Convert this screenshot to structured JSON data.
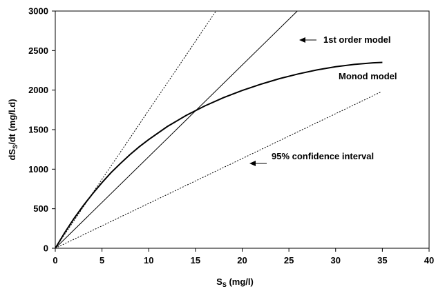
{
  "chart_data": {
    "type": "line",
    "title": "",
    "xlabel": {
      "main": "S",
      "sub": "S",
      "rest": " (mg/l)"
    },
    "ylabel": {
      "pre": "dS",
      "sub": "S",
      "rest": "/dt (mg/l.d)"
    },
    "xlim": [
      0,
      40
    ],
    "ylim": [
      0,
      3000
    ],
    "xticks": [
      0,
      5,
      10,
      15,
      20,
      25,
      30,
      35,
      40
    ],
    "yticks": [
      0,
      500,
      1000,
      1500,
      2000,
      2500,
      3000
    ],
    "grid": false,
    "legend": "none",
    "series": [
      {
        "name": "Monod model",
        "style": "solid-thick",
        "x": [
          0,
          1,
          2,
          3,
          4,
          5,
          6,
          7,
          8,
          9,
          10,
          12,
          14,
          16,
          18,
          20,
          22,
          24,
          26,
          28,
          30,
          32,
          34,
          35
        ],
        "y": [
          0,
          195,
          375,
          540,
          690,
          830,
          960,
          1075,
          1185,
          1285,
          1375,
          1540,
          1680,
          1800,
          1905,
          1995,
          2075,
          2145,
          2205,
          2255,
          2295,
          2325,
          2345,
          2350
        ]
      },
      {
        "name": "1st order model",
        "style": "solid-thin",
        "x": [
          0,
          25.9
        ],
        "y": [
          0,
          3000
        ]
      },
      {
        "name": "95% confidence interval upper",
        "style": "dotted",
        "x": [
          0,
          17.2
        ],
        "y": [
          0,
          3000
        ]
      },
      {
        "name": "95% confidence interval lower",
        "style": "dotted",
        "x": [
          0,
          34.9
        ],
        "y": [
          0,
          1980
        ]
      }
    ],
    "annotations": [
      {
        "text": "1st order model",
        "arrow": true,
        "target": "1st order model"
      },
      {
        "text": "Monod model",
        "arrow": false,
        "target": "Monod model"
      },
      {
        "text": "95% confidence interval",
        "arrow": true,
        "target": "95% confidence interval lower"
      }
    ]
  }
}
